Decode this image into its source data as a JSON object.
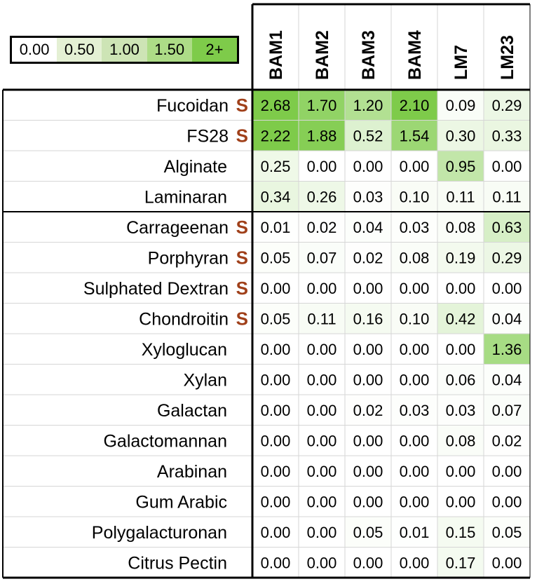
{
  "chart_data": {
    "type": "heatmap",
    "legend": {
      "labels": [
        "0.00",
        "0.50",
        "1.00",
        "1.50",
        "2+"
      ],
      "colors": [
        "#ffffff",
        "#e4f0d4",
        "#cde4b5",
        "#addc87",
        "#7ecb4a"
      ]
    },
    "color_scale": {
      "min": 0,
      "max": 2,
      "min_color": "#ffffff",
      "max_color": "#7ecb4a"
    },
    "columns": [
      "BAM1",
      "BAM2",
      "BAM3",
      "BAM4",
      "LM7",
      "LM23"
    ],
    "rows": [
      {
        "label": "Fucoidan",
        "marker": "S",
        "values": [
          "2.68",
          "1.70",
          "1.20",
          "2.10",
          "0.09",
          "0.29"
        ]
      },
      {
        "label": "FS28",
        "marker": "S",
        "values": [
          "2.22",
          "1.88",
          "0.52",
          "1.54",
          "0.30",
          "0.33"
        ]
      },
      {
        "label": "Alginate",
        "marker": "",
        "values": [
          "0.25",
          "0.00",
          "0.00",
          "0.00",
          "0.95",
          "0.00"
        ]
      },
      {
        "label": "Laminaran",
        "marker": "",
        "values": [
          "0.34",
          "0.26",
          "0.03",
          "0.10",
          "0.11",
          "0.11"
        ]
      },
      {
        "label": "Carrageenan",
        "marker": "S",
        "values": [
          "0.01",
          "0.02",
          "0.04",
          "0.03",
          "0.08",
          "0.63"
        ]
      },
      {
        "label": "Porphyran",
        "marker": "S",
        "values": [
          "0.05",
          "0.07",
          "0.02",
          "0.08",
          "0.19",
          "0.29"
        ]
      },
      {
        "label": "Sulphated Dextran",
        "marker": "S",
        "values": [
          "0.00",
          "0.00",
          "0.00",
          "0.00",
          "0.00",
          "0.00"
        ]
      },
      {
        "label": "Chondroitin",
        "marker": "S",
        "values": [
          "0.05",
          "0.11",
          "0.16",
          "0.10",
          "0.42",
          "0.04"
        ]
      },
      {
        "label": "Xyloglucan",
        "marker": "",
        "values": [
          "0.00",
          "0.00",
          "0.00",
          "0.00",
          "0.00",
          "1.36"
        ]
      },
      {
        "label": "Xylan",
        "marker": "",
        "values": [
          "0.00",
          "0.00",
          "0.00",
          "0.00",
          "0.06",
          "0.04"
        ]
      },
      {
        "label": "Galactan",
        "marker": "",
        "values": [
          "0.00",
          "0.00",
          "0.02",
          "0.03",
          "0.03",
          "0.07"
        ]
      },
      {
        "label": "Galactomannan",
        "marker": "",
        "values": [
          "0.00",
          "0.00",
          "0.00",
          "0.00",
          "0.08",
          "0.02"
        ]
      },
      {
        "label": "Arabinan",
        "marker": "",
        "values": [
          "0.00",
          "0.00",
          "0.00",
          "0.00",
          "0.00",
          "0.00"
        ]
      },
      {
        "label": "Gum Arabic",
        "marker": "",
        "values": [
          "0.00",
          "0.00",
          "0.00",
          "0.00",
          "0.00",
          "0.00"
        ]
      },
      {
        "label": "Polygalacturonan",
        "marker": "",
        "values": [
          "0.00",
          "0.00",
          "0.05",
          "0.01",
          "0.15",
          "0.05"
        ]
      },
      {
        "label": "Citrus Pectin",
        "marker": "",
        "values": [
          "0.00",
          "0.00",
          "0.00",
          "0.00",
          "0.17",
          "0.00"
        ]
      }
    ],
    "group_divider_after_row": 3,
    "marker_color": "#a0401a",
    "grid": true
  }
}
